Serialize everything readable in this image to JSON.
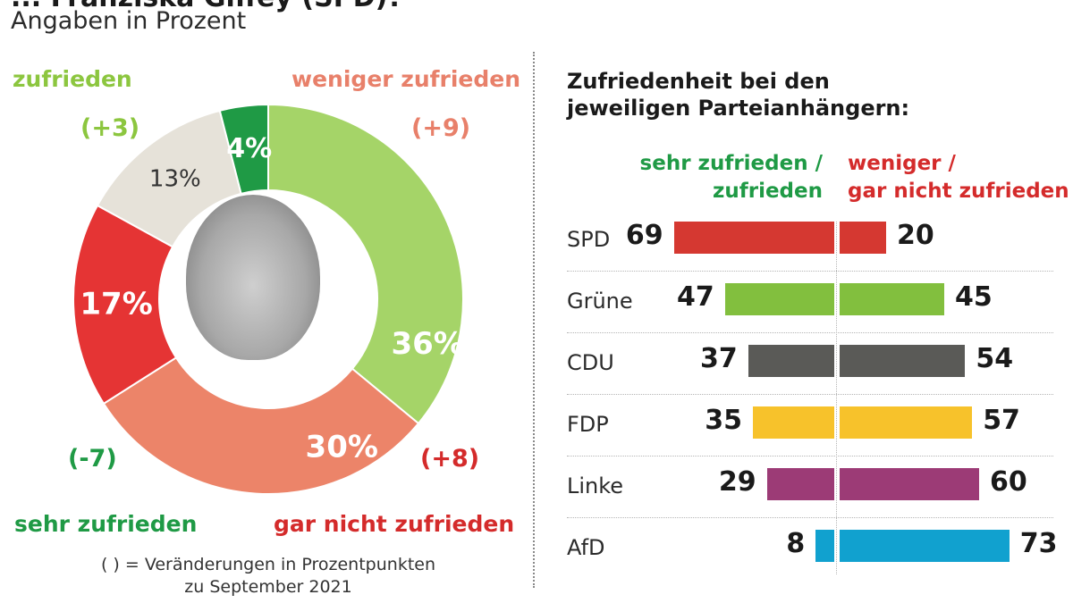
{
  "header": {
    "title_fragment": "... Franziska Giffey (SPD)?",
    "subtitle": "Angaben in Prozent"
  },
  "colors": {
    "zufrieden": "#a5d468",
    "weniger_zufrieden": "#ec8469",
    "gar_nicht_zufrieden": "#e53434",
    "weiss_nicht": "#e6e2d9",
    "sehr_zufrieden": "#1f9a45",
    "SPD": "#d53831",
    "Grüne": "#82bf3e",
    "CDU": "#5a5a57",
    "FDP": "#f7c22b",
    "Linke": "#9c3b76",
    "AfD": "#11a1cf"
  },
  "donut": {
    "labels": {
      "zufrieden": "zufrieden",
      "weniger_zufrieden": "weniger zufrieden",
      "sehr_zufrieden": "sehr zufrieden",
      "gar_nicht_zufrieden": "gar nicht zufrieden"
    },
    "changes": {
      "zufrieden": "(+3)",
      "weniger_zufrieden": "(+9)",
      "gar_nicht_zufrieden": "(+8)",
      "sehr_zufrieden": "(-7)"
    },
    "footnote_line1": "( ) = Veränderungen in Prozentpunkten",
    "footnote_line2": "zu September 2021"
  },
  "bars": {
    "title_line1": "Zufriedenheit bei den",
    "title_line2": "jeweiligen Parteianhängern:",
    "left_header_line1": "sehr zufrieden /",
    "left_header_line2": "zufrieden",
    "right_header_line1": "weniger /",
    "right_header_line2": "gar nicht zufrieden"
  },
  "chart_data": [
    {
      "type": "pie",
      "subtype": "donut",
      "title": "",
      "slices": [
        {
          "key": "zufrieden",
          "label": "zufrieden",
          "value": 36,
          "value_label": "36%",
          "change": "+3"
        },
        {
          "key": "weniger_zufrieden",
          "label": "weniger zufrieden",
          "value": 30,
          "value_label": "30%",
          "change": "+9"
        },
        {
          "key": "gar_nicht_zufrieden",
          "label": "gar nicht zufrieden",
          "value": 17,
          "value_label": "17%",
          "change": "+8"
        },
        {
          "key": "weiss_nicht",
          "label": "",
          "value": 13,
          "value_label": "13%",
          "change": ""
        },
        {
          "key": "sehr_zufrieden",
          "label": "sehr zufrieden",
          "value": 4,
          "value_label": "4%",
          "change": "-7"
        }
      ]
    },
    {
      "type": "bar",
      "orientation": "horizontal-diverging",
      "title": "Zufriedenheit bei den jeweiligen Parteianhängern:",
      "categories": [
        "SPD",
        "Grüne",
        "CDU",
        "FDP",
        "Linke",
        "AfD"
      ],
      "series": [
        {
          "name": "sehr zufrieden / zufrieden",
          "values": [
            69,
            47,
            37,
            35,
            29,
            8
          ]
        },
        {
          "name": "weniger / gar nicht zufrieden",
          "values": [
            20,
            45,
            54,
            57,
            60,
            73
          ]
        }
      ],
      "xlim": [
        0,
        80
      ]
    }
  ]
}
